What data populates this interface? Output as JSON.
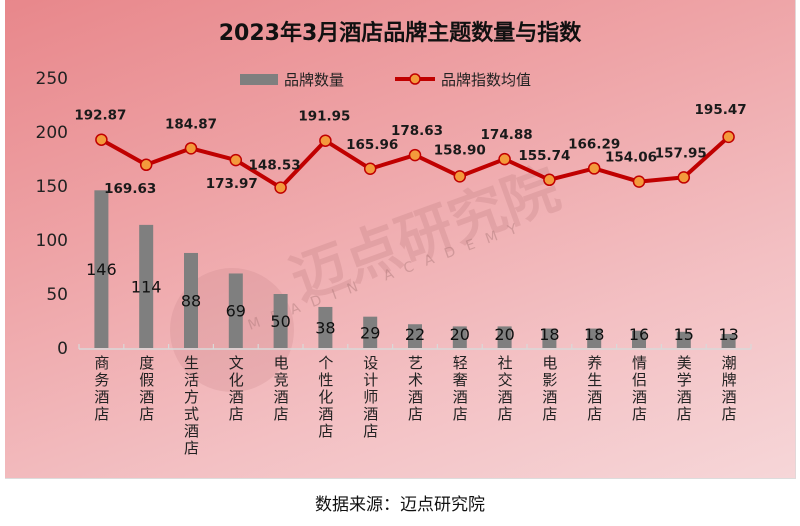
{
  "chart_data": {
    "type": "bar+line",
    "title": "2023年3月酒店品牌主题数量与指数",
    "categories": [
      "商务酒店",
      "度假酒店",
      "生活方式酒店",
      "文化酒店",
      "电竞酒店",
      "个性化酒店",
      "设计师酒店",
      "艺术酒店",
      "轻奢酒店",
      "社交酒店",
      "电影酒店",
      "养生酒店",
      "情侣酒店",
      "美学酒店",
      "潮牌酒店"
    ],
    "series": [
      {
        "name": "品牌数量",
        "type": "bar",
        "color": "#7f7f7f",
        "values": [
          146,
          114,
          88,
          69,
          50,
          38,
          29,
          22,
          20,
          20,
          18,
          18,
          16,
          15,
          13
        ]
      },
      {
        "name": "品牌指数均值",
        "type": "line",
        "color": "#c00000",
        "marker_color": "#f39a3c",
        "values": [
          192.87,
          169.63,
          184.87,
          173.97,
          148.53,
          191.95,
          165.96,
          178.63,
          158.9,
          174.88,
          155.74,
          166.29,
          154.06,
          157.95,
          195.47
        ],
        "labels": [
          "192.87",
          "169.63",
          "184.87",
          "173.97",
          "148.53",
          "191.95",
          "165.96",
          "178.63",
          "158.90",
          "174.88",
          "155.74",
          "166.29",
          "154.06",
          "157.95",
          "195.47"
        ]
      }
    ],
    "xlabel": "",
    "ylabel": "",
    "ylim": [
      0,
      250
    ],
    "yticks": [
      0,
      50,
      100,
      150,
      200,
      250
    ],
    "grid": false,
    "legend_position": "top"
  },
  "legend": {
    "bar_label": "品牌数量",
    "line_label": "品牌指数均值"
  },
  "watermark": {
    "cn": "迈点研究院",
    "en": "MEADIN ACADEMY"
  },
  "footer": {
    "source": "数据来源：迈点研究院"
  }
}
